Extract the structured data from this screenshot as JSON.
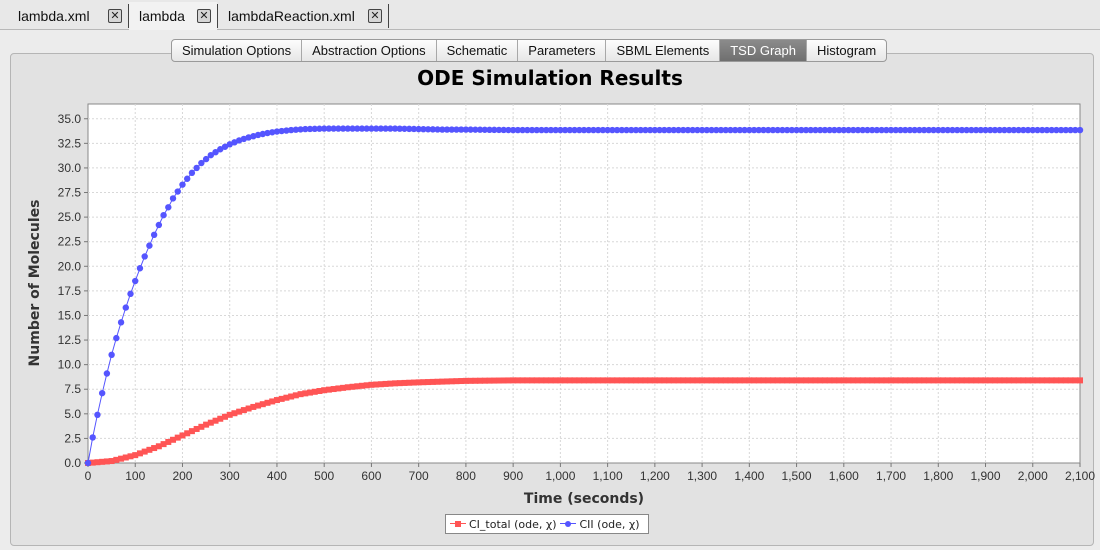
{
  "file_tabs": [
    {
      "label": "lambda.xml"
    },
    {
      "label": "lambda"
    },
    {
      "label": "lambdaReaction.xml"
    }
  ],
  "inner_tabs": [
    {
      "label": "Simulation Options"
    },
    {
      "label": "Abstraction Options"
    },
    {
      "label": "Schematic"
    },
    {
      "label": "Parameters"
    },
    {
      "label": "SBML Elements"
    },
    {
      "label": "TSD Graph",
      "selected": true
    },
    {
      "label": "Histogram"
    }
  ],
  "chart_data": {
    "type": "scatter",
    "title": "ODE Simulation Results",
    "xlabel": "Time (seconds)",
    "ylabel": "Number of Molecules",
    "xlim": [
      0,
      2100
    ],
    "ylim": [
      0,
      36.5
    ],
    "x_ticks": [
      "0",
      "100",
      "200",
      "300",
      "400",
      "500",
      "600",
      "700",
      "800",
      "900",
      "1,000",
      "1,100",
      "1,200",
      "1,300",
      "1,400",
      "1,500",
      "1,600",
      "1,700",
      "1,800",
      "1,900",
      "2,000",
      "2,100"
    ],
    "y_ticks": [
      "0.0",
      "2.5",
      "5.0",
      "7.5",
      "10.0",
      "12.5",
      "15.0",
      "17.5",
      "20.0",
      "22.5",
      "25.0",
      "27.5",
      "30.0",
      "32.5",
      "35.0"
    ],
    "grid": true,
    "legend_position": "bottom",
    "series": [
      {
        "name": "CI_total (ode, χ)",
        "color": "#ff5555",
        "marker": "square",
        "x": [
          0,
          50,
          100,
          150,
          200,
          250,
          300,
          350,
          400,
          450,
          500,
          550,
          600,
          650,
          700,
          800,
          900,
          1000,
          1200,
          1400,
          1600,
          1800,
          2000,
          2100
        ],
        "values": [
          0.0,
          0.2,
          0.8,
          1.7,
          2.8,
          3.9,
          4.9,
          5.7,
          6.4,
          7.0,
          7.4,
          7.7,
          7.95,
          8.1,
          8.2,
          8.35,
          8.4,
          8.4,
          8.4,
          8.4,
          8.4,
          8.4,
          8.4,
          8.4
        ]
      },
      {
        "name": "CII (ode, χ)",
        "color": "#5555ff",
        "marker": "circle",
        "x": [
          0,
          10,
          20,
          30,
          40,
          50,
          60,
          70,
          80,
          90,
          100,
          110,
          120,
          130,
          140,
          150,
          160,
          170,
          180,
          190,
          200,
          220,
          240,
          260,
          280,
          300,
          320,
          340,
          360,
          380,
          400,
          430,
          460,
          500,
          550,
          600,
          650,
          700,
          750,
          800,
          900,
          1000,
          1200,
          1400,
          1600,
          1800,
          2000,
          2100
        ],
        "values": [
          0.0,
          2.6,
          4.9,
          7.1,
          9.1,
          11.0,
          12.7,
          14.3,
          15.8,
          17.2,
          18.5,
          19.8,
          21.0,
          22.1,
          23.2,
          24.2,
          25.2,
          26.0,
          26.9,
          27.6,
          28.3,
          29.5,
          30.5,
          31.3,
          31.9,
          32.4,
          32.8,
          33.1,
          33.35,
          33.55,
          33.7,
          33.85,
          33.95,
          34.0,
          34.0,
          34.0,
          34.0,
          33.95,
          33.9,
          33.9,
          33.85,
          33.85,
          33.85,
          33.85,
          33.85,
          33.85,
          33.85,
          33.85
        ]
      }
    ]
  }
}
